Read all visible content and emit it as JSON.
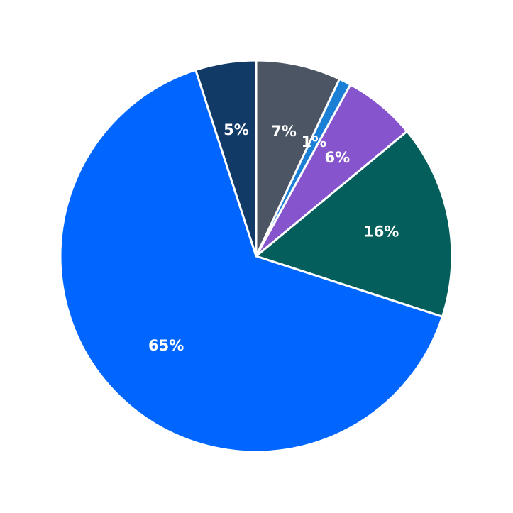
{
  "chart_data": {
    "type": "pie",
    "values": [
      7,
      1,
      6,
      16,
      65,
      5
    ],
    "value_labels": [
      "7%",
      "1%",
      "6%",
      "16%",
      "65%",
      "5%"
    ],
    "colors": [
      "#4b5563",
      "#1c7fd6",
      "#8654cc",
      "#045e5b",
      "#0066ff",
      "#123a66"
    ]
  }
}
